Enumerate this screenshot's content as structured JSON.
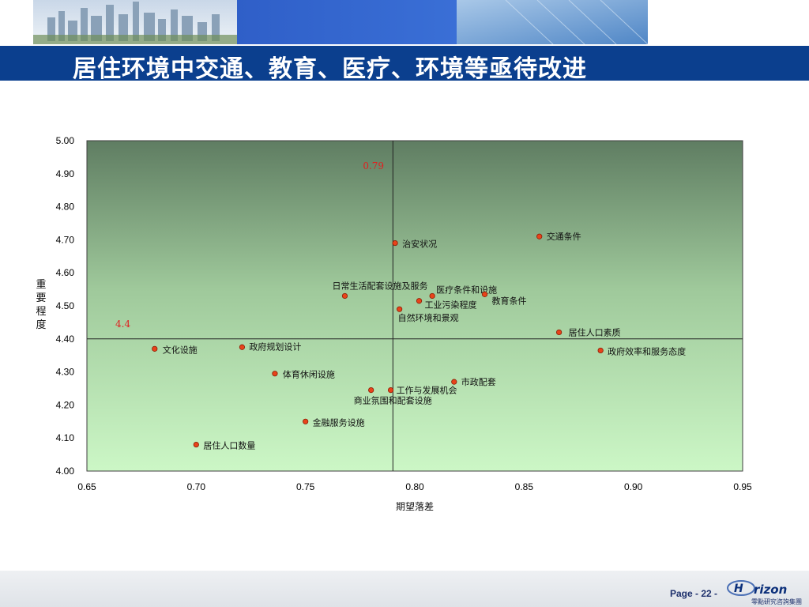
{
  "slide": {
    "title": "居住环境中交通、教育、医疗、环境等亟待改进",
    "page_number": "Page - 22 -",
    "logo_text": "H",
    "logo_wordmark": "rizon",
    "logo_caption": "零點研究咨詢集團",
    "colors": {
      "title_bar": "#0b3f8e",
      "point": "#e8431a",
      "annotation": "#e02020"
    }
  },
  "chart_data": {
    "type": "scatter",
    "title": "",
    "xlabel": "期望落差",
    "ylabel": "重要程度",
    "xlim": [
      0.65,
      0.95
    ],
    "ylim": [
      4.0,
      5.0
    ],
    "x_ticks": [
      "0.65",
      "0.70",
      "0.75",
      "0.80",
      "0.85",
      "0.90",
      "0.95"
    ],
    "y_ticks": [
      "4.00",
      "4.10",
      "4.20",
      "4.30",
      "4.40",
      "4.50",
      "4.60",
      "4.70",
      "4.80",
      "4.90",
      "5.00"
    ],
    "reference_lines": {
      "x": 0.79,
      "y": 4.4,
      "x_label": "0.79",
      "y_label": "4.4"
    },
    "points": [
      {
        "label": "交通条件",
        "x": 0.857,
        "y": 4.71
      },
      {
        "label": "治安状况",
        "x": 0.791,
        "y": 4.69
      },
      {
        "label": "日常生活配套设施及服务",
        "x": 0.768,
        "y": 4.53
      },
      {
        "label": "医疗条件和设施",
        "x": 0.808,
        "y": 4.53
      },
      {
        "label": "教育条件",
        "x": 0.832,
        "y": 4.535
      },
      {
        "label": "工业污染程度",
        "x": 0.802,
        "y": 4.515
      },
      {
        "label": "自然环境和景观",
        "x": 0.793,
        "y": 4.49
      },
      {
        "label": "居住人口素质",
        "x": 0.866,
        "y": 4.42
      },
      {
        "label": "文化设施",
        "x": 0.681,
        "y": 4.37
      },
      {
        "label": "政府规划设计",
        "x": 0.721,
        "y": 4.375
      },
      {
        "label": "政府效率和服务态度",
        "x": 0.885,
        "y": 4.365
      },
      {
        "label": "体育休闲设施",
        "x": 0.736,
        "y": 4.295
      },
      {
        "label": "市政配套",
        "x": 0.818,
        "y": 4.27
      },
      {
        "label": "工作与发展机会",
        "x": 0.789,
        "y": 4.245
      },
      {
        "label": "商业氛围和配套设施",
        "x": 0.78,
        "y": 4.245
      },
      {
        "label": "金融服务设施",
        "x": 0.75,
        "y": 4.15
      },
      {
        "label": "居住人口数量",
        "x": 0.7,
        "y": 4.08
      }
    ],
    "grid": false
  }
}
